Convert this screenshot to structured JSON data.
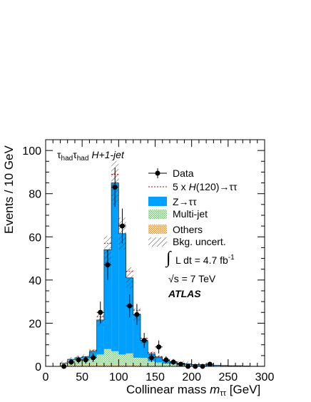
{
  "chart_data": {
    "type": "bar",
    "title": "",
    "xlabel_main": "Collinear mass ",
    "xlabel_var": "m",
    "xlabel_sub": "ττ",
    "xlabel_unit": " [GeV]",
    "ylabel": "Events / 10 GeV",
    "xlim": [
      0,
      300
    ],
    "ylim": [
      0,
      105
    ],
    "xticks": [
      0,
      50,
      100,
      150,
      200,
      250,
      300
    ],
    "yticks": [
      0,
      20,
      40,
      60,
      80,
      100
    ],
    "channel": {
      "tau1": "τ",
      "sub1": "had",
      "tau2": "τ",
      "sub2": "had",
      "rest": " H+1-jet"
    },
    "bin_width": 10,
    "bin_edges_start": [
      20,
      30,
      40,
      50,
      60,
      70,
      80,
      90,
      100,
      110,
      120,
      130,
      140,
      150,
      160,
      170,
      180,
      190,
      200,
      210,
      220,
      230,
      240,
      250,
      260,
      270,
      280,
      290
    ],
    "series": [
      {
        "name": "Z→ττ",
        "color": "#00a0ff",
        "values": [
          0,
          0.3,
          0.5,
          1,
          3,
          16,
          46,
          78,
          56,
          35,
          20,
          8,
          3.5,
          2.5,
          1.5,
          1,
          0.8,
          0.5,
          0.4,
          0.3,
          0.3,
          0.2,
          0.2,
          0.1,
          0.1,
          0.1,
          0.1,
          0.1
        ]
      },
      {
        "name": "Multi-jet",
        "color": "#66cc66",
        "values": [
          1,
          2.5,
          3,
          3,
          3.5,
          5,
          7.5,
          6.5,
          5,
          5.5,
          3.5,
          3.5,
          2,
          1.5,
          1,
          0.8,
          0.5,
          0.5,
          0.3,
          0.3,
          0.2,
          0.2,
          0.1,
          0.1,
          0.1,
          0.1,
          0,
          0
        ]
      },
      {
        "name": "Others",
        "color": "#ff8800",
        "values": [
          0.5,
          0.5,
          0.5,
          0.5,
          0.5,
          0.5,
          0.5,
          0.5,
          0.5,
          0.5,
          0.5,
          0.4,
          0.4,
          0.3,
          0.3,
          0.3,
          0.2,
          0.2,
          0.2,
          0.2,
          0.1,
          0.1,
          0.1,
          0.1,
          0.1,
          0,
          0,
          0
        ]
      }
    ],
    "uncertainty_name": "Bkg. uncert.",
    "uncertainty_rel": 0.12,
    "signal": {
      "name_prefix": "5 x ",
      "name_var": "H",
      "name_suffix": "(120)→ττ",
      "color": "#cc0000",
      "values": [
        0,
        0,
        0,
        0,
        0.5,
        1.5,
        3,
        4,
        4,
        3,
        2,
        1,
        0.5,
        0.3,
        0.2,
        0.1,
        0,
        0,
        0,
        0,
        0,
        0,
        0,
        0,
        0,
        0,
        0,
        0
      ]
    },
    "data": {
      "name": "Data",
      "x": [
        25,
        35,
        45,
        55,
        65,
        75,
        85,
        95,
        105,
        115,
        125,
        135,
        145,
        155,
        165,
        175,
        185,
        195,
        205,
        215,
        225
      ],
      "y": [
        0,
        2,
        3,
        3,
        4,
        25,
        47,
        83,
        65,
        28,
        24,
        12,
        4,
        9,
        3,
        2,
        1,
        0,
        0,
        0,
        1
      ],
      "yerr": [
        0,
        1.4,
        1.7,
        1.7,
        2.0,
        5.0,
        6.9,
        9.1,
        8.1,
        5.3,
        4.9,
        3.5,
        2.0,
        3.0,
        1.7,
        1.4,
        1.0,
        0,
        0,
        0,
        1.0
      ]
    },
    "annotations": {
      "lumi_integral": "∫",
      "lumi_text": "L dt = 4.7 fb",
      "lumi_sup": "-1",
      "sqrt": "√",
      "energy": "s = 7 TeV",
      "atlas": "ATLAS"
    },
    "legend_position": "right",
    "grid": false
  }
}
